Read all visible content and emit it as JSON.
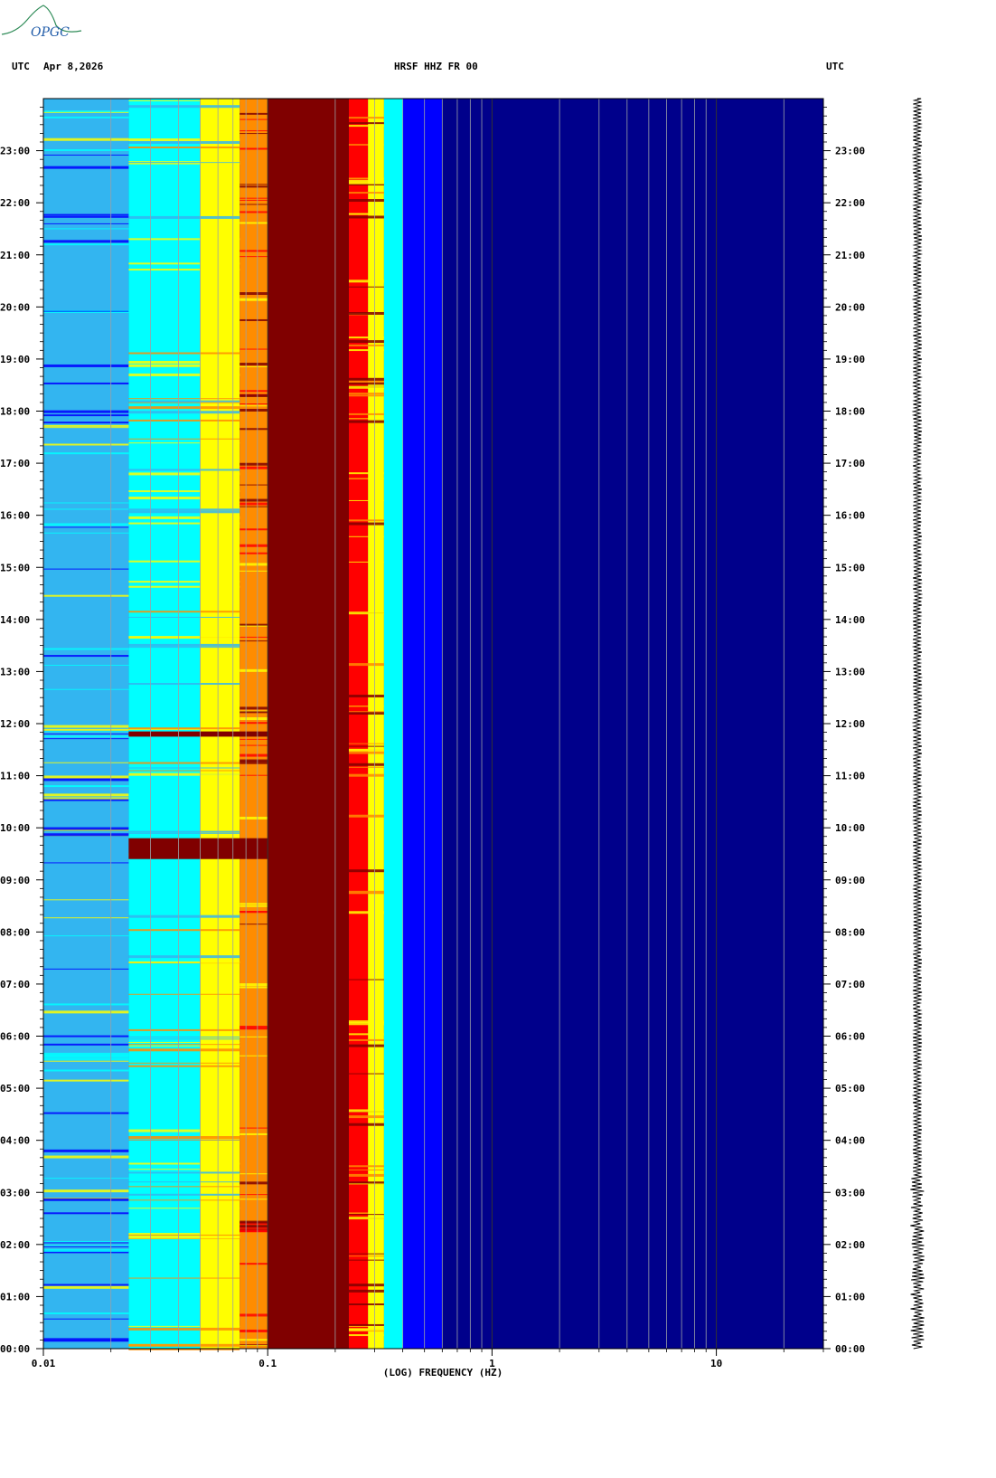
{
  "logo": {
    "text": "OPGC",
    "color": "#2e8b57"
  },
  "header": {
    "left_tz": "UTC",
    "date": "Apr 8,2026",
    "station": "HRSF HHZ FR 00",
    "right_tz": "UTC"
  },
  "colors": {
    "dark_red": "#800000",
    "red": "#ff0000",
    "orange": "#ff8c00",
    "yellow": "#ffff00",
    "cyan": "#00ffff",
    "light_blue": "#33b5f0",
    "blue": "#0000ff",
    "navy": "#00008b",
    "deep_blue": "#1a2ab8"
  },
  "chart_data": {
    "type": "heatmap",
    "title": "HRSF HHZ FR 00",
    "xlabel": "(LOG) FREQUENCY (HZ)",
    "x_scale": "log",
    "xlim": [
      0.01,
      30
    ],
    "x_tick_labels": [
      "0.01",
      "0.1",
      "1",
      "10"
    ],
    "x_tick_values": [
      0.01,
      0.1,
      1,
      10
    ],
    "y_tick_labels": [
      "00:00",
      "01:00",
      "02:00",
      "03:00",
      "04:00",
      "05:00",
      "06:00",
      "07:00",
      "08:00",
      "09:00",
      "10:00",
      "11:00",
      "12:00",
      "13:00",
      "14:00",
      "15:00",
      "16:00",
      "17:00",
      "18:00",
      "19:00",
      "20:00",
      "21:00",
      "22:00",
      "23:00"
    ],
    "y_range_hours": [
      0,
      24
    ],
    "color_bands": [
      {
        "f_from": 0.01,
        "f_to": 0.024,
        "color": "light_blue"
      },
      {
        "f_from": 0.024,
        "f_to": 0.05,
        "color": "cyan"
      },
      {
        "f_from": 0.05,
        "f_to": 0.075,
        "color": "yellow"
      },
      {
        "f_from": 0.075,
        "f_to": 0.1,
        "color": "orange"
      },
      {
        "f_from": 0.1,
        "f_to": 0.23,
        "color": "dark_red"
      },
      {
        "f_from": 0.23,
        "f_to": 0.28,
        "color": "red"
      },
      {
        "f_from": 0.28,
        "f_to": 0.33,
        "color": "yellow"
      },
      {
        "f_from": 0.33,
        "f_to": 0.4,
        "color": "cyan"
      },
      {
        "f_from": 0.4,
        "f_to": 0.6,
        "color": "blue"
      },
      {
        "f_from": 0.6,
        "f_to": 30,
        "color": "navy"
      }
    ],
    "events": [
      {
        "hour_from": 9.4,
        "hour_to": 9.8,
        "f_from": 0.024,
        "f_to": 0.1,
        "color": "dark_red"
      },
      {
        "hour_from": 11.75,
        "hour_to": 11.85,
        "f_from": 0.024,
        "f_to": 0.1,
        "color": "dark_red"
      }
    ]
  }
}
